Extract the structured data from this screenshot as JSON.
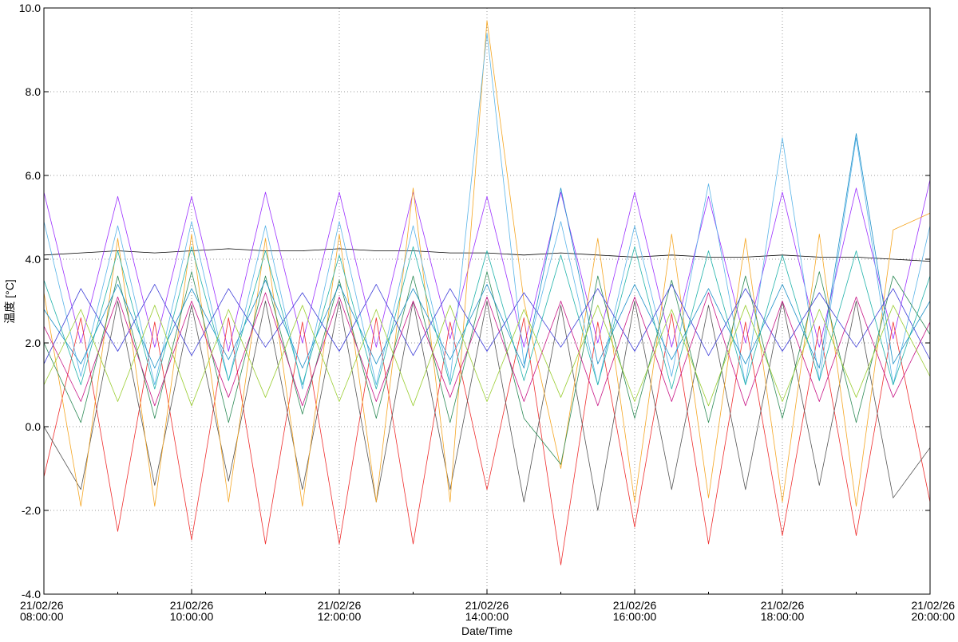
{
  "chart_data": {
    "type": "line",
    "xlabel": "Date/Time",
    "ylabel": "温度 [°C]",
    "ylim": [
      -4.0,
      10.0
    ],
    "yticks": [
      -4.0,
      -2.0,
      0.0,
      2.0,
      4.0,
      6.0,
      8.0,
      10.0
    ],
    "ytick_labels": [
      "-4.0",
      "-2.0",
      "0.0",
      "2.0",
      "4.0",
      "6.0",
      "8.0",
      "10.0"
    ],
    "xlim": [
      "2021-02-26 08:00:00",
      "2021-02-26 20:00:00"
    ],
    "xticks": [
      "2021-02-26 08:00:00",
      "2021-02-26 10:00:00",
      "2021-02-26 12:00:00",
      "2021-02-26 14:00:00",
      "2021-02-26 16:00:00",
      "2021-02-26 18:00:00",
      "2021-02-26 20:00:00"
    ],
    "xtick_labels": [
      [
        "21/02/26",
        "08:00:00"
      ],
      [
        "21/02/26",
        "10:00:00"
      ],
      [
        "21/02/26",
        "12:00:00"
      ],
      [
        "21/02/26",
        "14:00:00"
      ],
      [
        "21/02/26",
        "16:00:00"
      ],
      [
        "21/02/26",
        "18:00:00"
      ],
      [
        "21/02/26",
        "20:00:00"
      ]
    ],
    "grid": true,
    "x": [
      "2021-02-26 08:00:00",
      "2021-02-26 08:30:00",
      "2021-02-26 09:00:00",
      "2021-02-26 09:30:00",
      "2021-02-26 10:00:00",
      "2021-02-26 10:30:00",
      "2021-02-26 11:00:00",
      "2021-02-26 11:30:00",
      "2021-02-26 12:00:00",
      "2021-02-26 12:30:00",
      "2021-02-26 13:00:00",
      "2021-02-26 13:30:00",
      "2021-02-26 14:00:00",
      "2021-02-26 14:30:00",
      "2021-02-26 15:00:00",
      "2021-02-26 15:30:00",
      "2021-02-26 16:00:00",
      "2021-02-26 16:30:00",
      "2021-02-26 17:00:00",
      "2021-02-26 17:30:00",
      "2021-02-26 18:00:00",
      "2021-02-26 18:30:00",
      "2021-02-26 19:00:00",
      "2021-02-26 19:30:00",
      "2021-02-26 20:00:00"
    ],
    "series": [
      {
        "color": "#000000",
        "values": [
          4.1,
          4.15,
          4.2,
          4.15,
          4.2,
          4.25,
          4.2,
          4.2,
          4.25,
          4.2,
          4.2,
          4.15,
          4.15,
          4.1,
          4.15,
          4.1,
          4.05,
          4.1,
          4.05,
          4.05,
          4.1,
          4.05,
          4.05,
          4.0,
          3.95
        ]
      },
      {
        "color": "#9b30ff",
        "values": [
          5.6,
          2.0,
          5.5,
          1.9,
          5.5,
          1.8,
          5.6,
          2.0,
          5.6,
          1.9,
          5.6,
          2.1,
          5.5,
          1.9,
          5.6,
          2.0,
          5.6,
          1.9,
          5.5,
          2.0,
          5.6,
          1.9,
          5.7,
          2.1,
          5.9
        ]
      },
      {
        "color": "#ef2e2e",
        "values": [
          -1.2,
          2.6,
          -2.5,
          2.5,
          -2.7,
          2.6,
          -2.8,
          2.5,
          -2.8,
          2.6,
          -2.8,
          2.5,
          -1.5,
          2.6,
          -3.3,
          2.5,
          -2.4,
          2.7,
          -2.8,
          2.5,
          -2.6,
          2.4,
          -2.6,
          2.5,
          -1.8
        ]
      },
      {
        "color": "#555555",
        "values": [
          0.0,
          -1.5,
          3.0,
          -1.4,
          2.9,
          -1.3,
          3.0,
          -1.5,
          3.0,
          -1.8,
          3.0,
          -1.5,
          3.0,
          -1.8,
          2.9,
          -2.0,
          3.0,
          -1.5,
          2.9,
          -1.5,
          3.0,
          -1.4,
          3.0,
          -1.7,
          -0.5
        ]
      },
      {
        "color": "#f5a623",
        "values": [
          3.2,
          -1.9,
          4.5,
          -1.9,
          4.6,
          -1.8,
          4.5,
          -1.9,
          4.6,
          -1.8,
          5.7,
          -1.8,
          9.7,
          3.0,
          -1.0,
          4.5,
          -1.8,
          4.6,
          -1.7,
          4.5,
          -1.8,
          4.6,
          -1.9,
          4.7,
          5.1
        ]
      },
      {
        "color": "#5ab4e8",
        "values": [
          4.9,
          1.2,
          4.8,
          1.0,
          4.9,
          1.1,
          4.8,
          0.9,
          4.9,
          1.0,
          4.8,
          1.1,
          9.4,
          1.5,
          4.9,
          1.0,
          4.8,
          1.2,
          5.8,
          1.0,
          6.9,
          1.1,
          6.9,
          1.0,
          4.8
        ]
      },
      {
        "color": "#2e8b57",
        "values": [
          2.0,
          0.1,
          3.6,
          0.2,
          3.7,
          0.1,
          3.6,
          0.3,
          3.5,
          0.2,
          3.6,
          0.1,
          3.7,
          0.2,
          -0.9,
          3.6,
          0.2,
          3.5,
          0.1,
          3.6,
          0.2,
          3.7,
          0.1,
          3.6,
          2.2
        ]
      },
      {
        "color": "#1a8fc7",
        "values": [
          2.8,
          1.5,
          3.4,
          1.4,
          3.3,
          1.6,
          3.5,
          1.4,
          3.4,
          1.5,
          3.3,
          1.6,
          3.4,
          1.4,
          5.7,
          1.5,
          3.4,
          1.6,
          3.3,
          1.5,
          3.4,
          1.4,
          7.0,
          1.5,
          3.0
        ]
      },
      {
        "color": "#3f3fd8",
        "values": [
          1.5,
          3.3,
          1.8,
          3.4,
          1.7,
          3.3,
          1.9,
          3.2,
          1.8,
          3.4,
          1.7,
          3.3,
          1.8,
          3.2,
          1.9,
          3.3,
          1.8,
          3.4,
          1.7,
          3.3,
          1.8,
          3.2,
          1.9,
          3.3,
          1.6
        ]
      },
      {
        "color": "#c71585",
        "values": [
          2.4,
          0.6,
          3.1,
          0.5,
          3.0,
          0.7,
          3.2,
          0.5,
          3.1,
          0.6,
          3.0,
          0.7,
          3.1,
          0.6,
          3.0,
          0.5,
          3.1,
          0.6,
          3.2,
          0.5,
          3.0,
          0.6,
          3.1,
          0.7,
          2.5
        ]
      },
      {
        "color": "#20b2aa",
        "values": [
          3.5,
          1.0,
          4.2,
          0.9,
          4.3,
          1.1,
          4.2,
          1.0,
          4.1,
          0.9,
          4.3,
          1.0,
          4.2,
          1.1,
          4.1,
          1.0,
          4.3,
          0.9,
          4.2,
          1.0,
          4.1,
          1.1,
          4.2,
          1.0,
          3.6
        ]
      },
      {
        "color": "#9acd32",
        "values": [
          1.0,
          2.8,
          0.6,
          2.9,
          0.5,
          2.8,
          0.7,
          2.9,
          0.6,
          2.8,
          0.5,
          2.9,
          0.6,
          2.8,
          0.7,
          2.9,
          0.6,
          2.8,
          0.5,
          2.9,
          0.6,
          2.8,
          0.7,
          2.9,
          1.2
        ]
      }
    ]
  }
}
